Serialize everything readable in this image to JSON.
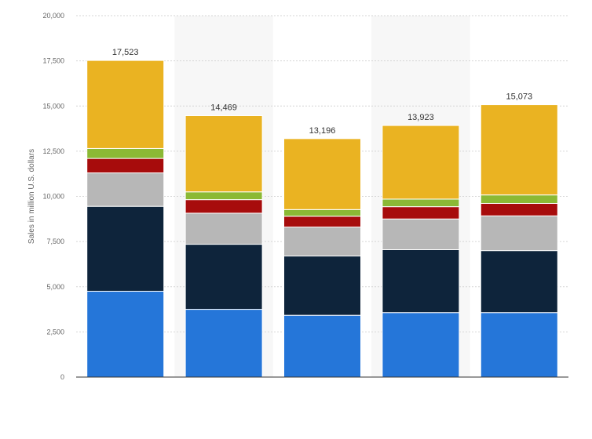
{
  "chart_data": {
    "type": "bar",
    "stacked": true,
    "title": "",
    "xlabel": "",
    "ylabel": "Sales in million U.S. dollars",
    "ylim": [
      0,
      20000
    ],
    "yticks": [
      0,
      2500,
      5000,
      7500,
      10000,
      12500,
      15000,
      17500,
      20000
    ],
    "ytick_labels": [
      "0",
      "2,500",
      "5,000",
      "7,500",
      "10,000",
      "12,500",
      "15,000",
      "17,500",
      "20,000"
    ],
    "categories": [
      "",
      "",
      "",
      "",
      ""
    ],
    "totals": [
      17523,
      14469,
      13196,
      13923,
      15073
    ],
    "total_labels": [
      "17,523",
      "14,469",
      "13,196",
      "13,923",
      "15,073"
    ],
    "grid": true,
    "alternating_column_shading": true,
    "series": [
      {
        "color": "#2576d9",
        "values": [
          4750,
          3750,
          3420,
          3570,
          3570
        ]
      },
      {
        "color": "#0e243b",
        "values": [
          4700,
          3600,
          3280,
          3480,
          3430
        ]
      },
      {
        "color": "#b7b7b7",
        "values": [
          1850,
          1720,
          1600,
          1700,
          1920
        ]
      },
      {
        "color": "#a70c0c",
        "values": [
          800,
          750,
          600,
          680,
          690
        ]
      },
      {
        "color": "#8bb935",
        "values": [
          550,
          430,
          370,
          420,
          470
        ]
      },
      {
        "color": "#eab322",
        "values": [
          4873,
          4219,
          3926,
          4073,
          4993
        ]
      }
    ]
  }
}
